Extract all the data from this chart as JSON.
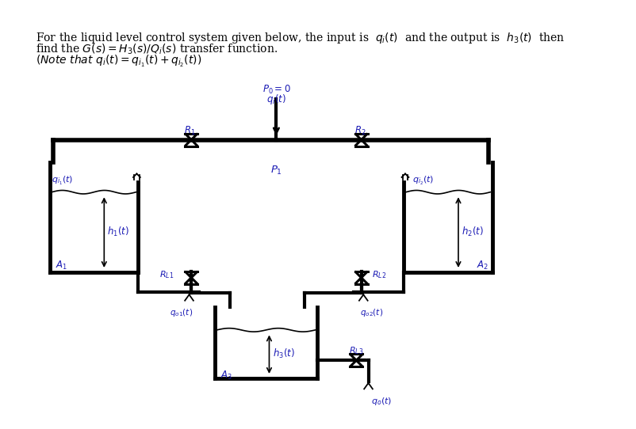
{
  "bg_color": "#ffffff",
  "line_color": "#000000",
  "text_color": "#1a1ab4",
  "lw_main": 3.0,
  "lw_valve": 2.2,
  "lw_wave": 1.2,
  "fs_label": 8.5,
  "fs_header": 10.0
}
